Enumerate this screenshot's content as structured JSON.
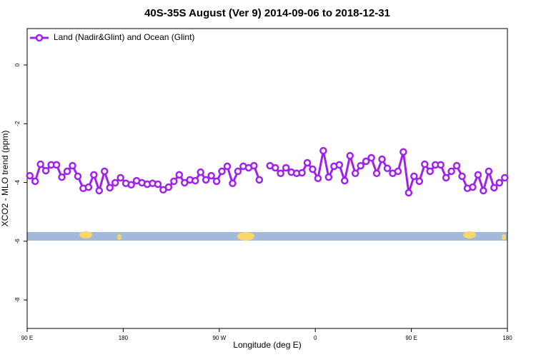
{
  "chart_data": {
    "type": "line",
    "title": "40S-35S August (Ver 9)   2014-09-06 to 2018-12-31",
    "x_label": "Longitude (deg E)",
    "y_label": "XCO2 - MLO trend (ppm)",
    "xlim": [
      90,
      540
    ],
    "xticks": [
      {
        "value": 90,
        "label": "90 E"
      },
      180,
      {
        "value": 270,
        "label": "90 W"
      },
      {
        "value": 360,
        "label": "0"
      },
      {
        "value": 450,
        "label": "90 E"
      },
      {
        "value": 540,
        "label": "180"
      }
    ],
    "ylim": [
      -8.97,
      1.24
    ],
    "yticks": [
      0,
      -2,
      -4,
      -6,
      -8
    ],
    "legend": "top-left",
    "x": [
      92.5,
      97.5,
      102.5,
      107.5,
      112.5,
      117.5,
      122.5,
      127.5,
      132.5,
      137.5,
      142.5,
      147.5,
      152.5,
      157.5,
      162.5,
      167.5,
      172.5,
      177.5,
      182.5,
      187.5,
      192.5,
      197.5,
      202.5,
      207.5,
      212.5,
      217.5,
      222.5,
      227.5,
      232.5,
      237.5,
      242.5,
      247.5,
      252.5,
      257.5,
      262.5,
      267.5,
      272.5,
      277.5,
      282.5,
      287.5,
      292.5,
      297.5,
      302.5,
      307.5,
      312.5,
      317.5,
      322.5,
      327.5,
      332.5,
      337.5,
      342.5,
      347.5,
      352.5,
      357.5,
      362.5,
      367.5,
      372.5,
      377.5,
      382.5,
      387.5,
      392.5,
      397.5,
      402.5,
      407.5,
      412.5,
      417.5,
      422.5,
      427.5,
      432.5,
      437.5,
      442.5,
      447.5,
      452.5,
      457.5,
      462.5,
      467.5,
      472.5,
      477.5,
      482.5,
      487.5,
      492.5,
      497.5,
      502.5,
      507.5,
      512.5,
      517.5,
      522.5,
      527.5,
      532.5,
      537.5
    ],
    "series": [
      {
        "name": "Land (Nadir&Glint) and Ocean (Glint)",
        "color": "#a020f0",
        "values": [
          -3.77,
          -3.96,
          -3.38,
          -3.6,
          -3.4,
          -3.4,
          -3.82,
          -3.62,
          -3.43,
          -3.79,
          -4.2,
          -4.16,
          -3.74,
          -4.28,
          -3.62,
          -4.18,
          -4.01,
          -3.84,
          -4.03,
          -4.08,
          -3.94,
          -4.01,
          -4.06,
          -4.03,
          -4.06,
          -4.25,
          -4.16,
          -3.96,
          -3.74,
          -4.01,
          -3.91,
          -3.94,
          -3.65,
          -3.91,
          -3.77,
          -3.96,
          -3.62,
          -3.45,
          -4.03,
          -3.62,
          -3.45,
          -3.5,
          -3.43,
          -3.91,
          null,
          -3.43,
          -3.5,
          -3.69,
          -3.5,
          -3.65,
          -3.69,
          -3.67,
          -3.33,
          -3.55,
          -3.86,
          -2.92,
          -3.82,
          -3.45,
          -3.4,
          -3.94,
          -3.09,
          -3.69,
          -3.43,
          -3.28,
          -3.16,
          -3.69,
          -3.21,
          -3.52,
          -3.69,
          -3.62,
          -2.96,
          -4.35,
          -3.79,
          -3.96,
          -3.38,
          -3.62,
          -3.4,
          -3.4,
          -3.84,
          -3.62,
          -3.43,
          -3.79,
          -4.2,
          -4.16,
          -3.74,
          -4.28,
          -3.62,
          -4.18,
          -4.01,
          -3.84
        ]
      }
    ]
  }
}
